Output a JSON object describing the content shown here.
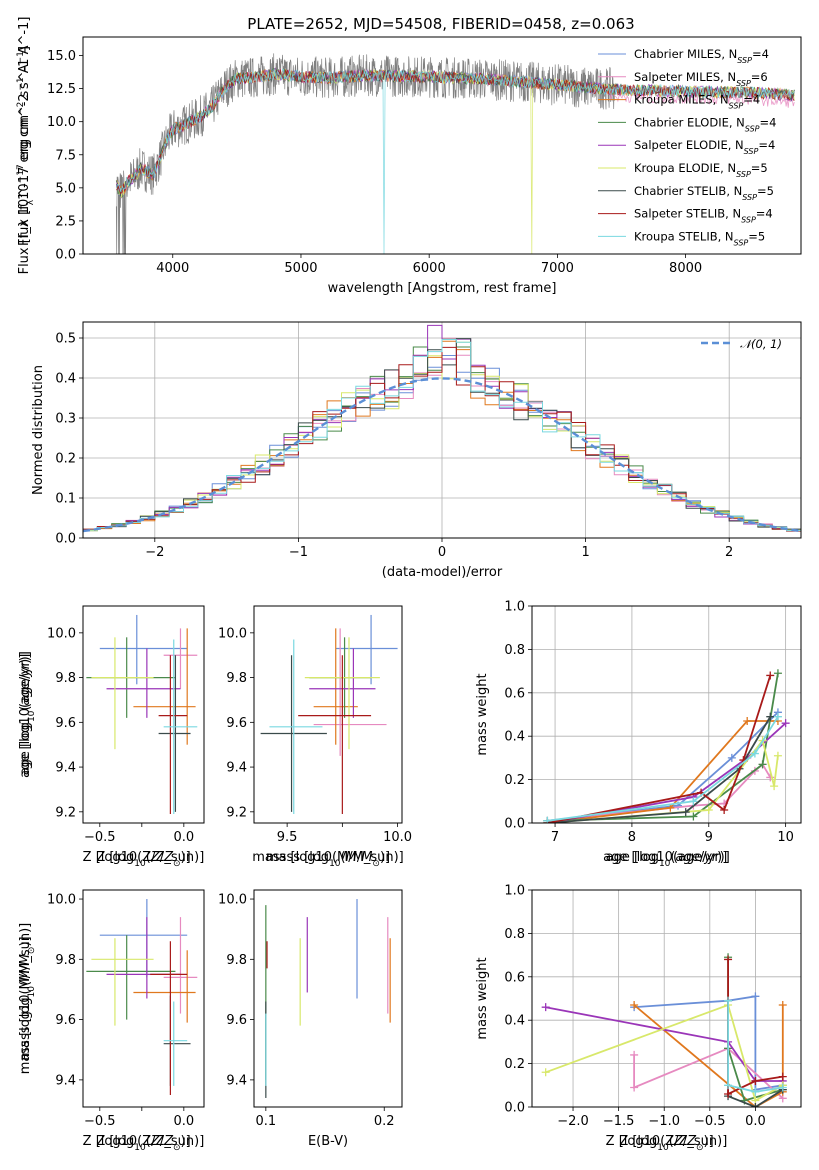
{
  "figure_title": "PLATE=2652, MJD=54508, FIBERID=0458, z=0.063",
  "colors": {
    "Chabrier MILES": "#6a8fd8",
    "Salpeter MILES": "#e68ac0",
    "Kroupa MILES": "#e0781e",
    "Chabrier ELODIE": "#4a8a4a",
    "Salpeter ELODIE": "#9a35b8",
    "Kroupa ELODIE": "#d8e86a",
    "Chabrier STELIB": "#3a4a4a",
    "Salpeter STELIB": "#a81a1a",
    "Kroupa STELIB": "#7ad8e0",
    "data": "#808080",
    "normal": "#5b8fd6"
  },
  "chart_data": [
    {
      "type": "line",
      "title": "PLATE=2652, MJD=54508, FIBERID=0458, z=0.063",
      "xlabel": "wavelength [Angstrom, rest frame]",
      "ylabel": "Flux [f_λ 10^-17 erg cm^-2 s^-1 A^-1]",
      "xlim": [
        3300,
        8900
      ],
      "ylim": [
        0,
        16.4
      ],
      "xticks": [
        4000,
        5000,
        6000,
        7000,
        8000
      ],
      "yticks": [
        0.0,
        2.5,
        5.0,
        7.5,
        10.0,
        12.5,
        15.0
      ],
      "continuum": {
        "x": [
          3560,
          3600,
          3650,
          3700,
          3750,
          3800,
          3850,
          3900,
          3950,
          4000,
          4100,
          4200,
          4300,
          4400,
          4500,
          4600,
          4800,
          5000,
          5200,
          5500,
          6000,
          6500,
          7000,
          7200,
          7400,
          7500,
          8000,
          8500,
          8800
        ],
        "y": [
          5.2,
          4.6,
          5.5,
          5.8,
          6.5,
          6.2,
          6.0,
          7.2,
          8.5,
          9.4,
          9.8,
          10.3,
          11.0,
          12.5,
          13.3,
          13.3,
          13.6,
          13.4,
          13.3,
          13.5,
          13.4,
          13.2,
          12.8,
          12.6,
          12.5,
          12.4,
          12.3,
          12.2,
          12.0
        ]
      },
      "data_range": [
        3560,
        7450
      ],
      "model_range": [
        3560,
        8850
      ],
      "legend": {
        "placement": "top-right",
        "entries": [
          "Chabrier MILES, N_SSP=4",
          "Salpeter MILES, N_SSP=6",
          "Kroupa MILES, N_SSP=4",
          "Chabrier ELODIE, N_SSP=4",
          "Salpeter ELODIE, N_SSP=4",
          "Kroupa ELODIE, N_SSP=5",
          "Chabrier STELIB, N_SSP=5",
          "Salpeter STELIB, N_SSP=4",
          "Kroupa STELIB, N_SSP=5"
        ]
      }
    },
    {
      "type": "histogram",
      "xlabel": "(data-model)/error",
      "ylabel": "Normed distribution",
      "xlim": [
        -2.5,
        2.5
      ],
      "ylim": [
        0,
        0.54
      ],
      "xticks": [
        -2,
        -1,
        0,
        1,
        2
      ],
      "yticks": [
        0.0,
        0.1,
        0.2,
        0.3,
        0.4,
        0.5
      ],
      "grid": true,
      "bin_width": 0.1,
      "legend": {
        "placement": "top-right",
        "entries": [
          "N(0,1)"
        ]
      }
    },
    {
      "type": "errorbar",
      "xlabel": "Z [log10(Z/Z_sun)]",
      "ylabel": "age [log10(age/yr)]",
      "xlim": [
        -0.6,
        0.12
      ],
      "ylim": [
        9.15,
        10.12
      ],
      "xticks": [
        -0.5,
        -0.25,
        0.0
      ],
      "xticklabels": [
        "−0.5",
        "",
        "0.0"
      ],
      "yticks": [
        9.2,
        9.4,
        9.6,
        9.8,
        10.0
      ],
      "points": [
        {
          "m": "Chabrier MILES",
          "x": -0.28,
          "xlo": -0.5,
          "xhi": 0.02,
          "y": 9.93,
          "ylo": 9.77,
          "yhi": 10.08
        },
        {
          "m": "Salpeter MILES",
          "x": -0.02,
          "xlo": -0.12,
          "xhi": 0.08,
          "y": 9.9,
          "ylo": 9.75,
          "yhi": 10.02
        },
        {
          "m": "Kroupa MILES",
          "x": 0.02,
          "xlo": -0.3,
          "xhi": 0.07,
          "y": 9.67,
          "ylo": 9.5,
          "yhi": 10.02
        },
        {
          "m": "Chabrier ELODIE",
          "x": -0.34,
          "xlo": -0.58,
          "xhi": -0.05,
          "y": 9.8,
          "ylo": 9.62,
          "yhi": 9.98
        },
        {
          "m": "Salpeter ELODIE",
          "x": -0.22,
          "xlo": -0.46,
          "xhi": -0.02,
          "y": 9.75,
          "ylo": 9.62,
          "yhi": 9.93
        },
        {
          "m": "Kroupa ELODIE",
          "x": -0.41,
          "xlo": -0.55,
          "xhi": -0.18,
          "y": 9.8,
          "ylo": 9.48,
          "yhi": 9.98
        },
        {
          "m": "Chabrier STELIB",
          "x": -0.05,
          "xlo": -0.15,
          "xhi": 0.04,
          "y": 9.55,
          "ylo": 9.2,
          "yhi": 9.9
        },
        {
          "m": "Salpeter STELIB",
          "x": -0.08,
          "xlo": -0.15,
          "xhi": 0.02,
          "y": 9.63,
          "ylo": 9.19,
          "yhi": 9.9
        },
        {
          "m": "Kroupa STELIB",
          "x": -0.06,
          "xlo": -0.12,
          "xhi": 0.08,
          "y": 9.58,
          "ylo": 9.19,
          "yhi": 9.97
        }
      ]
    },
    {
      "type": "errorbar",
      "xlabel": "mass [log10(M/M_sun)]",
      "ylabel": "",
      "xlim": [
        9.35,
        10.02
      ],
      "ylim": [
        9.15,
        10.12
      ],
      "xticks": [
        9.5,
        9.75,
        10.0
      ],
      "xticklabels": [
        "9.5",
        "",
        "10.0"
      ],
      "yticks": [
        9.2,
        9.4,
        9.6,
        9.8,
        10.0
      ],
      "points": [
        {
          "m": "Chabrier MILES",
          "x": 9.88,
          "xlo": 9.72,
          "xhi": 10.0,
          "y": 9.93,
          "ylo": 9.77,
          "yhi": 10.08
        },
        {
          "m": "Salpeter MILES",
          "x": 9.74,
          "xlo": 9.62,
          "xhi": 9.95,
          "y": 9.59,
          "ylo": 9.45,
          "yhi": 10.02
        },
        {
          "m": "Kroupa MILES",
          "x": 9.72,
          "xlo": 9.62,
          "xhi": 9.82,
          "y": 9.67,
          "ylo": 9.5,
          "yhi": 10.02
        },
        {
          "m": "Chabrier ELODIE",
          "x": 9.76,
          "xlo": 9.6,
          "xhi": 9.88,
          "y": 9.8,
          "ylo": 9.62,
          "yhi": 9.98
        },
        {
          "m": "Salpeter ELODIE",
          "x": 9.8,
          "xlo": 9.6,
          "xhi": 9.9,
          "y": 9.75,
          "ylo": 9.62,
          "yhi": 9.93
        },
        {
          "m": "Kroupa ELODIE",
          "x": 9.78,
          "xlo": 9.58,
          "xhi": 9.92,
          "y": 9.8,
          "ylo": 9.48,
          "yhi": 9.98
        },
        {
          "m": "Chabrier STELIB",
          "x": 9.52,
          "xlo": 9.38,
          "xhi": 9.68,
          "y": 9.55,
          "ylo": 9.2,
          "yhi": 9.9
        },
        {
          "m": "Salpeter STELIB",
          "x": 9.75,
          "xlo": 9.55,
          "xhi": 9.88,
          "y": 9.63,
          "ylo": 9.19,
          "yhi": 9.9
        },
        {
          "m": "Kroupa STELIB",
          "x": 9.53,
          "xlo": 9.42,
          "xhi": 9.66,
          "y": 9.58,
          "ylo": 9.19,
          "yhi": 9.97
        }
      ]
    },
    {
      "type": "line",
      "xlabel": "age [log10(age/yr)]",
      "ylabel": "mass weight",
      "xlim": [
        6.7,
        10.2
      ],
      "ylim": [
        0,
        1
      ],
      "xticks": [
        7,
        8,
        9,
        10
      ],
      "yticks": [
        0.0,
        0.2,
        0.4,
        0.6,
        0.8,
        1.0
      ],
      "grid": true,
      "series": [
        {
          "m": "Chabrier MILES",
          "x": [
            6.9,
            8.6,
            9.3,
            9.9
          ],
          "y": [
            0.01,
            0.08,
            0.3,
            0.51
          ]
        },
        {
          "m": "Salpeter MILES",
          "x": [
            6.9,
            8.8,
            9.2,
            9.6,
            9.7,
            9.8
          ],
          "y": [
            0.01,
            0.08,
            0.09,
            0.24,
            0.27,
            0.21
          ]
        },
        {
          "m": "Kroupa MILES",
          "x": [
            6.9,
            8.5,
            9.5,
            9.9
          ],
          "y": [
            0.0,
            0.07,
            0.47,
            0.47
          ]
        },
        {
          "m": "Chabrier ELODIE",
          "x": [
            6.9,
            8.8,
            9.7,
            9.9
          ],
          "y": [
            0.01,
            0.03,
            0.27,
            0.69
          ]
        },
        {
          "m": "Salpeter ELODIE",
          "x": [
            6.9,
            8.8,
            9.5,
            10.0
          ],
          "y": [
            0.0,
            0.12,
            0.3,
            0.46
          ]
        },
        {
          "m": "Kroupa ELODIE",
          "x": [
            6.9,
            9.0,
            9.7,
            9.85,
            9.9
          ],
          "y": [
            0.0,
            0.06,
            0.38,
            0.17,
            0.31
          ]
        },
        {
          "m": "Chabrier STELIB",
          "x": [
            6.9,
            8.7,
            9.4,
            9.8
          ],
          "y": [
            0.0,
            0.05,
            0.25,
            0.49
          ]
        },
        {
          "m": "Salpeter STELIB",
          "x": [
            6.9,
            8.9,
            9.2,
            9.45,
            9.8
          ],
          "y": [
            0.0,
            0.14,
            0.06,
            0.29,
            0.68
          ]
        },
        {
          "m": "Kroupa STELIB",
          "x": [
            6.9,
            8.8,
            9.6,
            9.9
          ],
          "y": [
            0.01,
            0.1,
            0.32,
            0.49
          ]
        }
      ]
    },
    {
      "type": "errorbar",
      "xlabel": "Z [log10(Z/Z_sun)]",
      "ylabel": "mass [log10(M/M_sun)]",
      "xlim": [
        -0.6,
        0.12
      ],
      "ylim": [
        9.31,
        10.03
      ],
      "xticks": [
        -0.5,
        -0.25,
        0.0
      ],
      "xticklabels": [
        "−0.5",
        "",
        "0.0"
      ],
      "yticks": [
        9.4,
        9.6,
        9.8,
        10.0
      ],
      "points": [
        {
          "m": "Chabrier MILES",
          "x": -0.22,
          "xlo": -0.5,
          "xhi": 0.02,
          "y": 9.88,
          "ylo": 9.74,
          "yhi": 10.0
        },
        {
          "m": "Salpeter MILES",
          "x": -0.02,
          "xlo": -0.12,
          "xhi": 0.08,
          "y": 9.74,
          "ylo": 9.62,
          "yhi": 9.94
        },
        {
          "m": "Kroupa MILES",
          "x": 0.02,
          "xlo": -0.3,
          "xhi": 0.07,
          "y": 9.69,
          "ylo": 9.59,
          "yhi": 9.83
        },
        {
          "m": "Chabrier ELODIE",
          "x": -0.34,
          "xlo": -0.58,
          "xhi": -0.05,
          "y": 9.76,
          "ylo": 9.6,
          "yhi": 9.88
        },
        {
          "m": "Salpeter ELODIE",
          "x": -0.22,
          "xlo": -0.46,
          "xhi": -0.02,
          "y": 9.75,
          "ylo": 9.67,
          "yhi": 9.94
        },
        {
          "m": "Kroupa ELODIE",
          "x": -0.41,
          "xlo": -0.55,
          "xhi": -0.18,
          "y": 9.8,
          "ylo": 9.58,
          "yhi": 9.87
        },
        {
          "m": "Chabrier STELIB",
          "x": -0.08,
          "xlo": -0.12,
          "xhi": 0.04,
          "y": 9.52,
          "ylo": 9.38,
          "yhi": 9.68
        },
        {
          "m": "Salpeter STELIB",
          "x": -0.08,
          "xlo": -0.2,
          "xhi": 0.02,
          "y": 9.75,
          "ylo": 9.35,
          "yhi": 9.86
        },
        {
          "m": "Kroupa STELIB",
          "x": -0.06,
          "xlo": -0.12,
          "xhi": 0.02,
          "y": 9.53,
          "ylo": 9.38,
          "yhi": 9.66
        }
      ]
    },
    {
      "type": "errorbar",
      "xlabel": "E(B-V)",
      "ylabel": "",
      "xlim": [
        0.09,
        0.215
      ],
      "ylim": [
        9.31,
        10.03
      ],
      "xticks": [
        0.1,
        0.2
      ],
      "yticks": [
        9.4,
        9.6,
        9.8,
        10.0
      ],
      "bars": [
        {
          "m": "Chabrier ELODIE",
          "x": 0.1,
          "ylo": 9.4,
          "yhi": 9.98
        },
        {
          "m": "Chabrier STELIB",
          "x": 0.1,
          "ylo": 9.34,
          "yhi": 9.66
        },
        {
          "m": "Kroupa STELIB",
          "x": 0.1,
          "ylo": 9.38,
          "yhi": 9.62
        },
        {
          "m": "Salpeter STELIB",
          "x": 0.101,
          "ylo": 9.77,
          "yhi": 9.86
        },
        {
          "m": "Kroupa ELODIE",
          "x": 0.129,
          "ylo": 9.58,
          "yhi": 9.87
        },
        {
          "m": "Salpeter ELODIE",
          "x": 0.135,
          "ylo": 9.69,
          "yhi": 9.94
        },
        {
          "m": "Chabrier MILES",
          "x": 0.177,
          "ylo": 9.67,
          "yhi": 10.0
        },
        {
          "m": "Salpeter MILES",
          "x": 0.203,
          "ylo": 9.62,
          "yhi": 9.94
        },
        {
          "m": "Kroupa MILES",
          "x": 0.205,
          "ylo": 9.59,
          "yhi": 9.87
        }
      ]
    },
    {
      "type": "line",
      "xlabel": "Z [log10(Z/Z_sun)]",
      "ylabel": "mass weight",
      "xlim": [
        -2.45,
        0.5
      ],
      "ylim": [
        0,
        1
      ],
      "xticks": [
        -2.0,
        -1.5,
        -1.0,
        -0.5,
        0.0
      ],
      "yticks": [
        0.0,
        0.2,
        0.4,
        0.6,
        0.8,
        1.0
      ],
      "grid": true,
      "series": [
        {
          "m": "Chabrier MILES",
          "x": [
            -1.33,
            -0.3,
            0.0,
            0.0,
            0.3
          ],
          "y": [
            0.46,
            0.49,
            0.51,
            0.08,
            0.1
          ]
        },
        {
          "m": "Salpeter MILES",
          "x": [
            -1.33,
            -1.33,
            -0.3,
            0.3
          ],
          "y": [
            0.24,
            0.09,
            0.27,
            0.04
          ]
        },
        {
          "m": "Kroupa MILES",
          "x": [
            -1.33,
            0.0,
            0.3,
            0.3
          ],
          "y": [
            0.47,
            0.0,
            0.07,
            0.47
          ]
        },
        {
          "m": "Chabrier ELODIE",
          "x": [
            -0.3,
            -0.3,
            -0.12,
            0.3
          ],
          "y": [
            0.69,
            0.27,
            0.03,
            0.08
          ]
        },
        {
          "m": "Salpeter ELODIE",
          "x": [
            -2.3,
            -0.3,
            0.0,
            0.3
          ],
          "y": [
            0.46,
            0.3,
            0.12,
            0.12
          ]
        },
        {
          "m": "Kroupa ELODIE",
          "x": [
            -2.3,
            -0.3,
            0.0,
            0.3
          ],
          "y": [
            0.16,
            0.47,
            0.03,
            0.1
          ]
        },
        {
          "m": "Chabrier STELIB",
          "x": [
            -0.3,
            -0.3,
            0.0,
            0.3
          ],
          "y": [
            0.49,
            0.05,
            0.0,
            0.08
          ]
        },
        {
          "m": "Salpeter STELIB",
          "x": [
            -0.3,
            -0.3,
            0.0,
            0.3
          ],
          "y": [
            0.68,
            0.06,
            0.12,
            0.14
          ]
        },
        {
          "m": "Kroupa STELIB",
          "x": [
            -0.3,
            -0.3,
            0.0,
            0.3
          ],
          "y": [
            0.49,
            0.1,
            0.07,
            0.09
          ]
        }
      ]
    }
  ]
}
